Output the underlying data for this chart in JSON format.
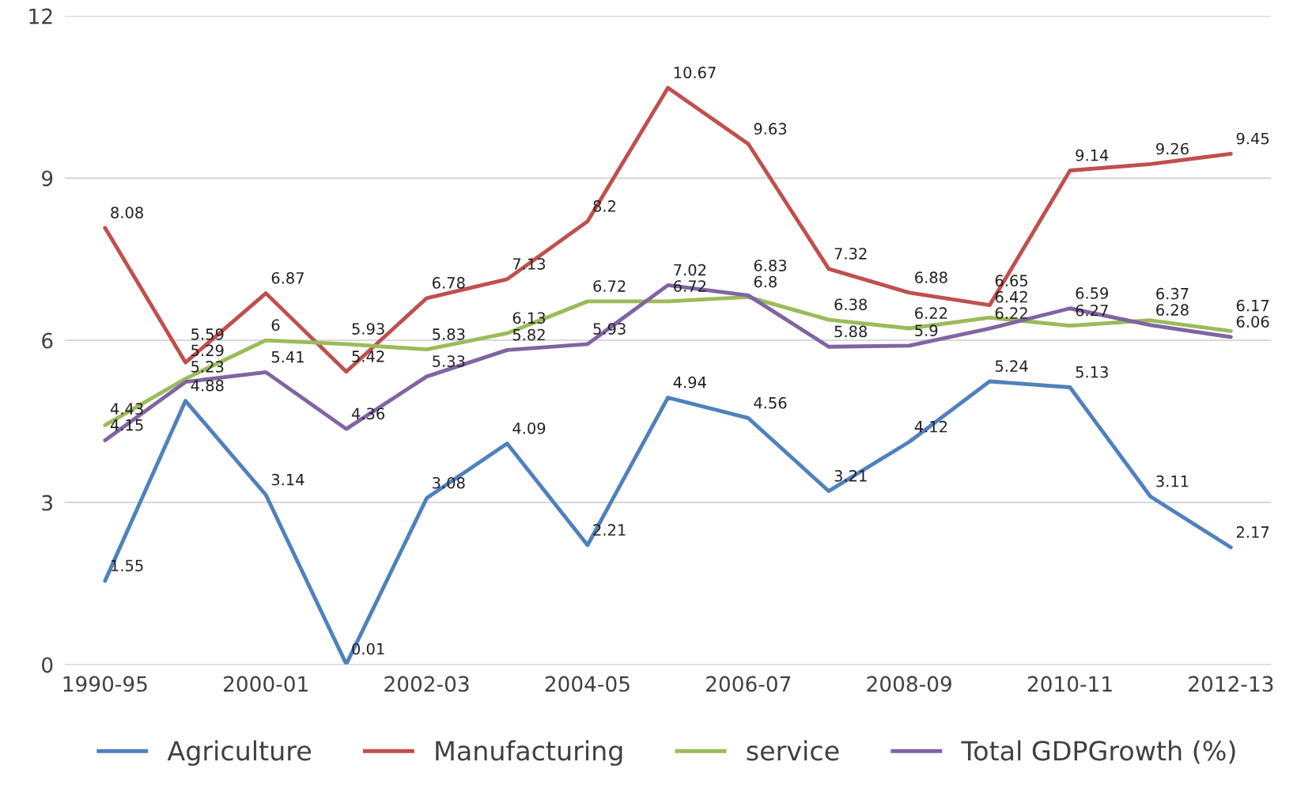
{
  "chart_data": {
    "type": "line",
    "categories": [
      "1990-95",
      null,
      "2000-01",
      null,
      "2002-03",
      null,
      "2004-05",
      null,
      "2006-07",
      null,
      "2008-09",
      null,
      "2010-11",
      null,
      "2012-13"
    ],
    "series": [
      {
        "name": "Agriculture",
        "color": "#4f81bd",
        "values": [
          1.55,
          4.88,
          3.14,
          0.01,
          3.08,
          4.09,
          2.21,
          4.94,
          4.56,
          3.21,
          4.12,
          5.24,
          5.13,
          3.11,
          2.17
        ]
      },
      {
        "name": "Manufacturing",
        "color": "#c0504d",
        "values": [
          8.08,
          5.59,
          6.87,
          5.42,
          6.78,
          7.13,
          8.2,
          10.67,
          9.63,
          7.32,
          6.88,
          6.65,
          9.14,
          9.26,
          9.45
        ]
      },
      {
        "name": "service",
        "color": "#9bbb59",
        "values": [
          4.43,
          5.29,
          6,
          5.93,
          5.83,
          6.13,
          6.72,
          6.72,
          6.8,
          6.38,
          6.22,
          6.42,
          6.27,
          6.37,
          6.17
        ]
      },
      {
        "name": "Total GDPGrowth (%)",
        "color": "#8064a2",
        "values": [
          4.15,
          5.23,
          5.41,
          4.36,
          5.33,
          5.82,
          5.93,
          7.02,
          6.83,
          5.88,
          5.9,
          6.22,
          6.59,
          6.28,
          6.06
        ]
      }
    ],
    "ylim": [
      0,
      12
    ],
    "yticks": [
      0,
      3,
      6,
      9,
      12
    ],
    "grid": "y",
    "legend": "bottom",
    "data_labels": true,
    "marker": "none",
    "line_style": "solid"
  }
}
